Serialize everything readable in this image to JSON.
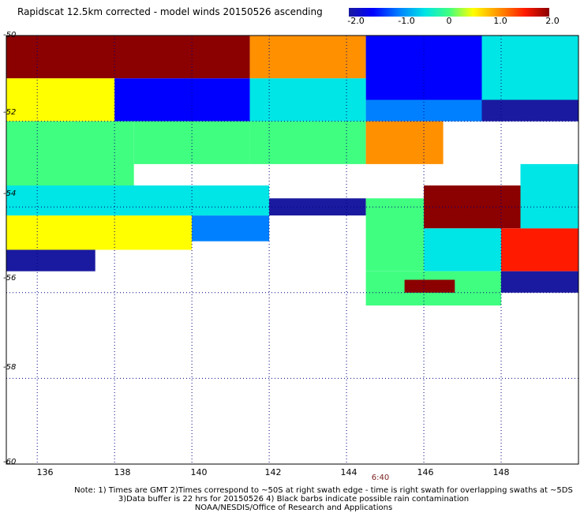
{
  "chart_data": {
    "type": "heatmap",
    "title": "Rapidscat 12.5km corrected - model winds 20150526 ascending",
    "xlabel": "",
    "ylabel": "",
    "x_ticks": [
      136,
      138,
      140,
      142,
      144,
      146,
      148
    ],
    "y_ticks": [
      -50,
      -52,
      -54,
      -56,
      -58,
      -60
    ],
    "xlim": [
      135.2,
      150.0
    ],
    "ylim": [
      -60,
      -50
    ],
    "colorbar": {
      "ticks": [
        "-2.0",
        "-1.0",
        "0",
        "1.0",
        "2.0"
      ],
      "range": [
        -2.0,
        2.0
      ],
      "colors": [
        "#1a1aa0",
        "#0000ff",
        "#0080ff",
        "#00e5e5",
        "#40ff80",
        "#ffff00",
        "#ff9000",
        "#ff1a00",
        "#8b0000"
      ]
    },
    "grid": true,
    "regions": [
      {
        "lon": [
          135.2,
          141.5
        ],
        "lat": [
          -51.0,
          -50.0
        ],
        "value": 1.9
      },
      {
        "lon": [
          141.5,
          144.5
        ],
        "lat": [
          -51.0,
          -50.0
        ],
        "value": 0.8
      },
      {
        "lon": [
          144.5,
          147.5
        ],
        "lat": [
          -51.5,
          -50.0
        ],
        "value": -1.5
      },
      {
        "lon": [
          147.5,
          150.0
        ],
        "lat": [
          -51.5,
          -50.0
        ],
        "value": -0.3
      },
      {
        "lon": [
          135.2,
          138.0
        ],
        "lat": [
          -52.0,
          -51.0
        ],
        "value": 0.7
      },
      {
        "lon": [
          138.0,
          141.5
        ],
        "lat": [
          -52.0,
          -51.0
        ],
        "value": -1.6
      },
      {
        "lon": [
          141.5,
          144.5
        ],
        "lat": [
          -52.0,
          -51.0
        ],
        "value": -0.4
      },
      {
        "lon": [
          144.5,
          147.5
        ],
        "lat": [
          -52.0,
          -51.5
        ],
        "value": -1.2
      },
      {
        "lon": [
          147.5,
          150.0
        ],
        "lat": [
          -52.0,
          -51.5
        ],
        "value": -1.8
      },
      {
        "lon": [
          135.2,
          138.5
        ],
        "lat": [
          -53.5,
          -52.0
        ],
        "value": 0.2
      },
      {
        "lon": [
          138.5,
          141.5
        ],
        "lat": [
          -53.0,
          -52.0
        ],
        "value": 0.1
      },
      {
        "lon": [
          141.5,
          144.5
        ],
        "lat": [
          -53.0,
          -52.0
        ],
        "value": -0.2
      },
      {
        "lon": [
          144.5,
          146.5
        ],
        "lat": [
          -53.0,
          -52.0
        ],
        "value": 0.9
      },
      {
        "lon": [
          135.2,
          142.0
        ],
        "lat": [
          -54.2,
          -53.5
        ],
        "value": -0.3
      },
      {
        "lon": [
          142.0,
          144.5
        ],
        "lat": [
          -54.2,
          -53.8
        ],
        "value": -1.9
      },
      {
        "lon": [
          135.2,
          140.0
        ],
        "lat": [
          -55.0,
          -54.2
        ],
        "value": 0.3
      },
      {
        "lon": [
          140.0,
          142.0
        ],
        "lat": [
          -54.8,
          -54.2
        ],
        "value": -0.9
      },
      {
        "lon": [
          135.2,
          137.5
        ],
        "lat": [
          -55.5,
          -55.0
        ],
        "value": -1.8
      },
      {
        "lon": [
          144.5,
          146.0
        ],
        "lat": [
          -55.5,
          -53.8
        ],
        "value": -0.2
      },
      {
        "lon": [
          146.0,
          148.5
        ],
        "lat": [
          -54.5,
          -53.5
        ],
        "value": 1.8
      },
      {
        "lon": [
          148.5,
          150.0
        ],
        "lat": [
          -54.5,
          -53.0
        ],
        "value": -0.6
      },
      {
        "lon": [
          146.0,
          148.0
        ],
        "lat": [
          -55.5,
          -54.5
        ],
        "value": -0.4
      },
      {
        "lon": [
          148.0,
          150.0
        ],
        "lat": [
          -55.5,
          -54.5
        ],
        "value": 1.5
      },
      {
        "lon": [
          144.5,
          148.0
        ],
        "lat": [
          -56.3,
          -55.5
        ],
        "value": 0.0
      },
      {
        "lon": [
          145.5,
          146.8
        ],
        "lat": [
          -56.0,
          -55.7
        ],
        "value": 1.8
      },
      {
        "lon": [
          148.0,
          150.0
        ],
        "lat": [
          -56.0,
          -55.5
        ],
        "value": -1.9
      }
    ]
  },
  "time_label": "6:40",
  "notes": {
    "line1": "Note: 1) Times are GMT 2)Times correspond to ~50S at right swath edge - time is right swath for overlapping swaths at ~5DS",
    "line2": "3)Data buffer is 22 hrs for 20150526 4) Black barbs indicate possible rain contamination",
    "line3": "NOAA/NESDIS/Office of Research and Applications"
  }
}
